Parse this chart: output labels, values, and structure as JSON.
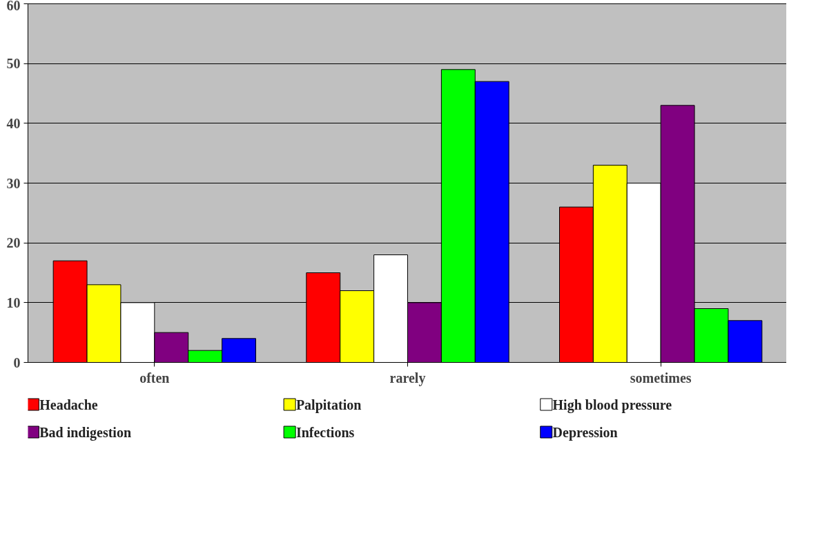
{
  "chart_data": {
    "type": "bar",
    "categories": [
      "often",
      "rarely",
      "sometimes"
    ],
    "series": [
      {
        "name": "Headache",
        "color": "#ff0000",
        "values": [
          17,
          15,
          26
        ]
      },
      {
        "name": "Palpitation",
        "color": "#ffff00",
        "values": [
          13,
          12,
          33
        ]
      },
      {
        "name": "High blood pressure",
        "color": "#ffffff",
        "values": [
          10,
          18,
          30
        ]
      },
      {
        "name": "Bad indigestion",
        "color": "#800080",
        "values": [
          5,
          10,
          43
        ]
      },
      {
        "name": "Infections",
        "color": "#00ff00",
        "values": [
          2,
          49,
          9
        ]
      },
      {
        "name": "Depression",
        "color": "#0000ff",
        "values": [
          4,
          47,
          7
        ]
      }
    ],
    "ylim": [
      0,
      60
    ],
    "yticks": [
      0,
      10,
      20,
      30,
      40,
      50,
      60
    ],
    "grid": "y",
    "legend": "bottom"
  }
}
